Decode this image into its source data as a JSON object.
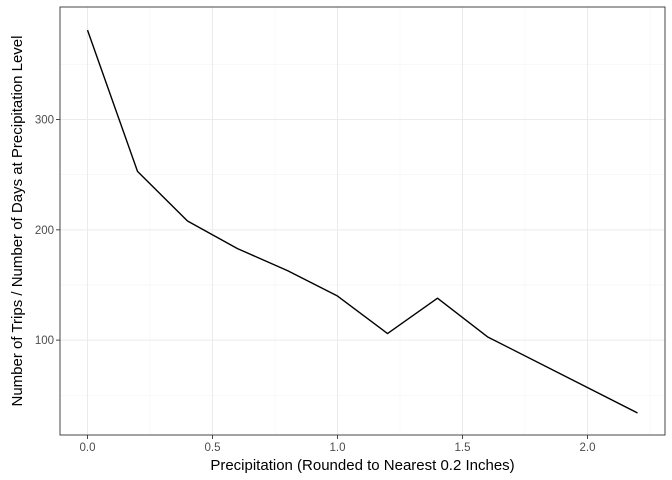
{
  "chart_data": {
    "type": "line",
    "title": "",
    "xlabel": "Precipitation (Rounded to Nearest 0.2 Inches)",
    "ylabel": "Number of Trips / Number of Days at Precipitation Level",
    "xlim": [
      -0.11,
      2.31
    ],
    "ylim": [
      14,
      402
    ],
    "x_ticks": [
      0.0,
      0.5,
      1.0,
      1.5,
      2.0
    ],
    "x_tick_labels": [
      "0.0",
      "0.5",
      "1.0",
      "1.5",
      "2.0"
    ],
    "y_ticks": [
      100,
      200,
      300
    ],
    "y_tick_labels": [
      "100",
      "200",
      "300"
    ],
    "grid": true,
    "legend": "none",
    "series": [
      {
        "color": "#000000",
        "x": [
          0.0,
          0.2,
          0.4,
          0.6,
          0.8,
          1.0,
          1.2,
          1.4,
          1.6,
          2.2
        ],
        "y": [
          381,
          253,
          208,
          183,
          163,
          140,
          106,
          138,
          103,
          34
        ]
      }
    ]
  }
}
